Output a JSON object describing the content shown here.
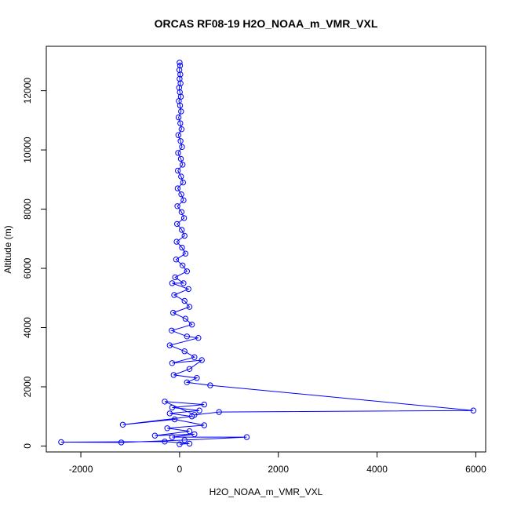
{
  "chart_data": {
    "type": "line",
    "title": "ORCAS RF08-19 H2O_NOAA_m_VMR_VXL",
    "xlabel": "H2O_NOAA_m_VMR_VXL",
    "ylabel": "Altitude (m)",
    "xlim": [
      -2700,
      6200
    ],
    "ylim": [
      -200,
      13500
    ],
    "xticks": [
      -2000,
      0,
      2000,
      4000,
      6000
    ],
    "yticks": [
      0,
      2000,
      4000,
      6000,
      8000,
      10000,
      12000
    ],
    "grid": false,
    "series": [
      {
        "color": "#0000ff",
        "marker": "open-circle",
        "points": [
          [
            0,
            12950
          ],
          [
            10,
            12850
          ],
          [
            -5,
            12700
          ],
          [
            15,
            12550
          ],
          [
            0,
            12400
          ],
          [
            20,
            12250
          ],
          [
            -10,
            12100
          ],
          [
            5,
            11950
          ],
          [
            25,
            11800
          ],
          [
            -15,
            11650
          ],
          [
            10,
            11500
          ],
          [
            30,
            11300
          ],
          [
            -20,
            11100
          ],
          [
            15,
            10900
          ],
          [
            40,
            10700
          ],
          [
            -25,
            10500
          ],
          [
            20,
            10300
          ],
          [
            50,
            10100
          ],
          [
            -30,
            9900
          ],
          [
            25,
            9700
          ],
          [
            60,
            9500
          ],
          [
            -35,
            9300
          ],
          [
            30,
            9100
          ],
          [
            70,
            8900
          ],
          [
            -40,
            8700
          ],
          [
            35,
            8500
          ],
          [
            80,
            8300
          ],
          [
            -45,
            8100
          ],
          [
            40,
            7900
          ],
          [
            90,
            7700
          ],
          [
            -50,
            7500
          ],
          [
            45,
            7300
          ],
          [
            100,
            7100
          ],
          [
            -60,
            6900
          ],
          [
            50,
            6700
          ],
          [
            120,
            6500
          ],
          [
            -70,
            6300
          ],
          [
            60,
            6100
          ],
          [
            150,
            5900
          ],
          [
            -90,
            5700
          ],
          [
            80,
            5500
          ],
          [
            -150,
            5500
          ],
          [
            180,
            5300
          ],
          [
            -110,
            5100
          ],
          [
            100,
            4900
          ],
          [
            200,
            4700
          ],
          [
            -130,
            4500
          ],
          [
            120,
            4300
          ],
          [
            250,
            4100
          ],
          [
            -160,
            3900
          ],
          [
            150,
            3700
          ],
          [
            380,
            3650
          ],
          [
            -200,
            3400
          ],
          [
            100,
            3200
          ],
          [
            300,
            3000
          ],
          [
            -150,
            2800
          ],
          [
            450,
            2900
          ],
          [
            200,
            2600
          ],
          [
            -120,
            2400
          ],
          [
            350,
            2300
          ],
          [
            150,
            2150
          ],
          [
            620,
            2050
          ],
          [
            5950,
            1200
          ],
          [
            800,
            1150
          ],
          [
            300,
            1050
          ],
          [
            -300,
            1500
          ],
          [
            500,
            1400
          ],
          [
            -150,
            1300
          ],
          [
            400,
            1200
          ],
          [
            -200,
            1100
          ],
          [
            250,
            1000
          ],
          [
            -1150,
            720
          ],
          [
            -100,
            900
          ],
          [
            500,
            700
          ],
          [
            -250,
            600
          ],
          [
            200,
            500
          ],
          [
            -500,
            350
          ],
          [
            300,
            400
          ],
          [
            -150,
            300
          ],
          [
            1360,
            300
          ],
          [
            100,
            200
          ],
          [
            -1180,
            120
          ],
          [
            -2400,
            130
          ],
          [
            -300,
            150
          ],
          [
            200,
            80
          ],
          [
            0,
            60
          ]
        ]
      }
    ]
  }
}
